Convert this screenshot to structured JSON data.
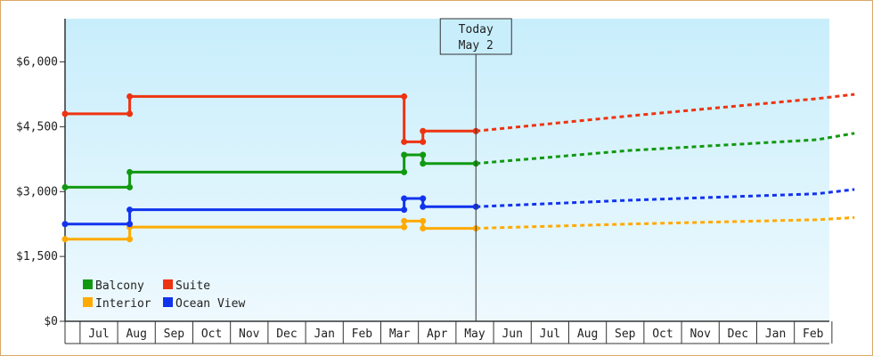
{
  "chart_data": {
    "type": "line",
    "title": "",
    "xlabel": "",
    "ylabel": "",
    "ylim": [
      0,
      7000
    ],
    "yticks": [
      0,
      1500,
      3000,
      4500,
      6000
    ],
    "ytick_labels": [
      "$0",
      "$1,500",
      "$3,000",
      "$4,500",
      "$6,000"
    ],
    "month_labels": [
      "Jul",
      "Aug",
      "Sep",
      "Oct",
      "Nov",
      "Dec",
      "Jan",
      "Feb",
      "Mar",
      "Apr",
      "May",
      "Jun",
      "Jul",
      "Aug",
      "Sep",
      "Oct",
      "Nov",
      "Dec",
      "Jan",
      "Feb"
    ],
    "today_marker": {
      "line1": "Today",
      "line2": "May 2",
      "month_position": 10.93
    },
    "grid": false,
    "legend_position": "bottom-left",
    "colors": {
      "Balcony": "#119911",
      "Suite": "#ee3311",
      "Interior": "#ffaa00",
      "Ocean View": "#1133ee",
      "axis": "#333333",
      "background_top": "#c8eefb",
      "background_bottom": "#eef9fe",
      "border": "#d9a766"
    },
    "series": [
      {
        "name": "Balcony",
        "history": [
          [
            0,
            3100
          ],
          [
            1.72,
            3100
          ],
          [
            1.72,
            3450
          ],
          [
            9.02,
            3450
          ],
          [
            9.02,
            3850
          ],
          [
            9.52,
            3850
          ],
          [
            9.52,
            3650
          ],
          [
            10.93,
            3650
          ]
        ],
        "forecast": [
          [
            10.93,
            3650
          ],
          [
            15,
            3950
          ],
          [
            20,
            4200
          ],
          [
            21,
            4350
          ]
        ]
      },
      {
        "name": "Suite",
        "history": [
          [
            0,
            4800
          ],
          [
            1.72,
            4800
          ],
          [
            1.72,
            5200
          ],
          [
            9.02,
            5200
          ],
          [
            9.02,
            4150
          ],
          [
            9.52,
            4150
          ],
          [
            9.52,
            4400
          ],
          [
            10.93,
            4400
          ]
        ],
        "forecast": [
          [
            10.93,
            4400
          ],
          [
            15,
            4750
          ],
          [
            20,
            5150
          ],
          [
            21,
            5250
          ]
        ]
      },
      {
        "name": "Interior",
        "history": [
          [
            0,
            1900
          ],
          [
            1.72,
            1900
          ],
          [
            1.72,
            2180
          ],
          [
            9.02,
            2180
          ],
          [
            9.02,
            2320
          ],
          [
            9.52,
            2320
          ],
          [
            9.52,
            2150
          ],
          [
            10.93,
            2150
          ]
        ],
        "forecast": [
          [
            10.93,
            2150
          ],
          [
            15,
            2250
          ],
          [
            20,
            2350
          ],
          [
            21,
            2400
          ]
        ]
      },
      {
        "name": "Ocean View",
        "history": [
          [
            0,
            2250
          ],
          [
            1.72,
            2250
          ],
          [
            1.72,
            2580
          ],
          [
            9.02,
            2580
          ],
          [
            9.02,
            2840
          ],
          [
            9.52,
            2840
          ],
          [
            9.52,
            2650
          ],
          [
            10.93,
            2650
          ]
        ],
        "forecast": [
          [
            10.93,
            2650
          ],
          [
            15,
            2800
          ],
          [
            20,
            2950
          ],
          [
            21,
            3050
          ]
        ]
      }
    ],
    "markers": {
      "Balcony": [
        [
          0,
          3100
        ],
        [
          1.72,
          3100
        ],
        [
          1.72,
          3450
        ],
        [
          9.02,
          3450
        ],
        [
          9.02,
          3850
        ],
        [
          9.52,
          3850
        ],
        [
          9.52,
          3650
        ],
        [
          10.93,
          3650
        ]
      ],
      "Suite": [
        [
          0,
          4800
        ],
        [
          1.72,
          4800
        ],
        [
          1.72,
          5200
        ],
        [
          9.02,
          5200
        ],
        [
          9.02,
          4150
        ],
        [
          9.52,
          4150
        ],
        [
          9.52,
          4400
        ],
        [
          10.93,
          4400
        ]
      ],
      "Interior": [
        [
          0,
          1900
        ],
        [
          1.72,
          1900
        ],
        [
          1.72,
          2180
        ],
        [
          9.02,
          2180
        ],
        [
          9.02,
          2320
        ],
        [
          9.52,
          2320
        ],
        [
          9.52,
          2150
        ],
        [
          10.93,
          2150
        ]
      ],
      "Ocean View": [
        [
          0,
          2250
        ],
        [
          1.72,
          2250
        ],
        [
          1.72,
          2580
        ],
        [
          9.02,
          2580
        ],
        [
          9.02,
          2840
        ],
        [
          9.52,
          2840
        ],
        [
          9.52,
          2650
        ],
        [
          10.93,
          2650
        ]
      ]
    },
    "legend": [
      "Balcony",
      "Suite",
      "Interior",
      "Ocean View"
    ]
  }
}
